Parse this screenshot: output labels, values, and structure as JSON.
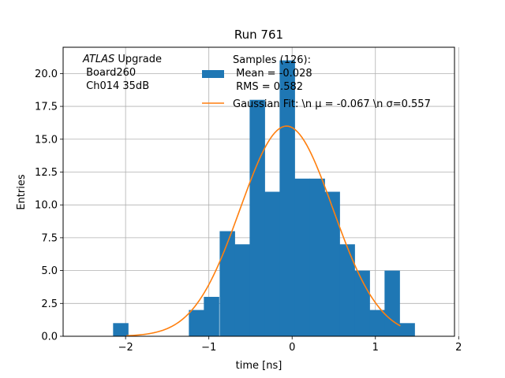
{
  "chart_data": {
    "type": "bar",
    "title": "Run 761",
    "xlabel": "time [ns]",
    "ylabel": "Entries",
    "xlim": [
      -2.75,
      1.95
    ],
    "ylim": [
      0,
      22
    ],
    "x_ticks": [
      -2,
      -1,
      0,
      1,
      2
    ],
    "y_ticks": [
      0.0,
      2.5,
      5.0,
      7.5,
      10.0,
      12.5,
      15.0,
      17.5,
      20.0
    ],
    "grid": true,
    "annotation": {
      "italic_part": "ATLAS",
      "rest_part": " Upgrade",
      "line2": " Board260",
      "line3": " Ch014 35dB"
    },
    "legend": {
      "placement": "top-right",
      "entries": [
        {
          "type": "patch",
          "lines": [
            "Samples (126):",
            " Mean = -0.028",
            " RMS = 0.582"
          ]
        },
        {
          "type": "line",
          "lines": [
            "Gaussian Fit: \\n μ = -0.067 \\n σ=0.557"
          ]
        }
      ]
    },
    "histogram": {
      "name": "Samples (126)",
      "color": "#1f77b4",
      "bin_width": 0.182,
      "bins": [
        {
          "left": -2.15,
          "count": 1
        },
        {
          "left": -1.24,
          "count": 2
        },
        {
          "left": -1.06,
          "count": 3
        },
        {
          "left": -0.87,
          "count": 8
        },
        {
          "left": -0.69,
          "count": 7
        },
        {
          "left": -0.51,
          "count": 18
        },
        {
          "left": -0.33,
          "count": 11
        },
        {
          "left": -0.15,
          "count": 21
        },
        {
          "left": 0.03,
          "count": 12
        },
        {
          "left": 0.21,
          "count": 12
        },
        {
          "left": 0.39,
          "count": 11
        },
        {
          "left": 0.57,
          "count": 7
        },
        {
          "left": 0.75,
          "count": 5
        },
        {
          "left": 0.93,
          "count": 2
        },
        {
          "left": 1.11,
          "count": 5
        },
        {
          "left": 1.29,
          "count": 1
        }
      ]
    },
    "gaussian_fit": {
      "name": "Gaussian Fit",
      "color": "#ff7f0e",
      "amplitude": 16.0,
      "mu": -0.067,
      "sigma": 0.557,
      "x_range": [
        -1.99,
        1.3
      ]
    }
  }
}
